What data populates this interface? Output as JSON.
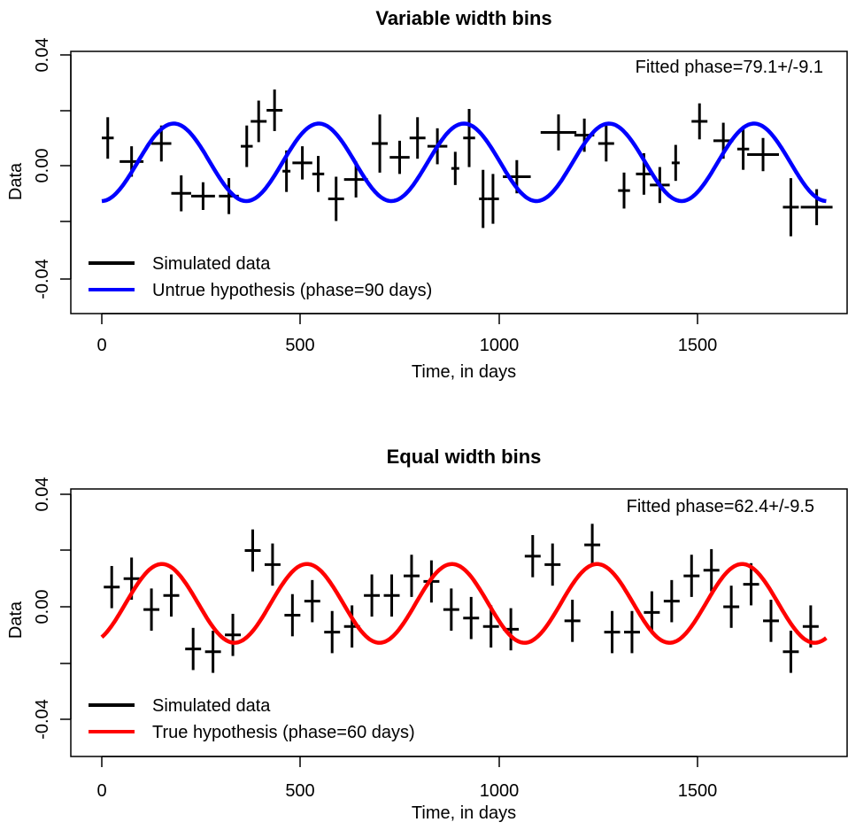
{
  "charts": [
    {
      "id": "top",
      "title": "Variable width bins",
      "xlabel": "Time, in days",
      "ylabel": "Data",
      "annotation": "Fitted phase=79.1+/-9.1",
      "x_ticks": [
        "0",
        "500",
        "1000",
        "1500"
      ],
      "y_ticks": [
        "-0.04",
        "0.00",
        "0.04"
      ],
      "legend": [
        {
          "label": "Simulated data",
          "color": "#000000"
        },
        {
          "label": "Untrue hypothesis (phase=90 days)",
          "color": "#0000ff"
        }
      ]
    },
    {
      "id": "bottom",
      "title": "Equal width bins",
      "xlabel": "Time, in days",
      "ylabel": "Data",
      "annotation": "Fitted phase=62.4+/-9.5",
      "x_ticks": [
        "0",
        "500",
        "1000",
        "1500"
      ],
      "y_ticks": [
        "-0.04",
        "0.00",
        "0.04"
      ],
      "legend": [
        {
          "label": "Simulated data",
          "color": "#000000"
        },
        {
          "label": "True hypothesis (phase=60 days)",
          "color": "#ff0000"
        }
      ]
    }
  ],
  "chart_data": [
    {
      "type": "scatter",
      "title": "Variable width bins",
      "xlabel": "Time, in days",
      "ylabel": "Data",
      "xlim": [
        -80,
        1880
      ],
      "ylim": [
        -0.053,
        0.043
      ],
      "x_ticks": [
        0,
        500,
        1000,
        1500
      ],
      "y_ticks": [
        -0.04,
        0.0,
        0.04
      ],
      "grid": false,
      "legend_position": "bottom-left",
      "annotation": "Fitted phase=79.1+/-9.1",
      "series": [
        {
          "name": "Simulated data",
          "kind": "errorbars",
          "color": "#000000",
          "points": [
            {
              "x": 15,
              "xerr": 15,
              "y": 0.01,
              "yerr": 0.0075
            },
            {
              "x": 75,
              "xerr": 30,
              "y": 0.0015,
              "yerr": 0.0055
            },
            {
              "x": 150,
              "xerr": 25,
              "y": 0.008,
              "yerr": 0.0065
            },
            {
              "x": 200,
              "xerr": 25,
              "y": -0.01,
              "yerr": 0.0065
            },
            {
              "x": 255,
              "xerr": 30,
              "y": -0.011,
              "yerr": 0.005
            },
            {
              "x": 320,
              "xerr": 25,
              "y": -0.011,
              "yerr": 0.0065
            },
            {
              "x": 365,
              "xerr": 15,
              "y": 0.007,
              "yerr": 0.0075
            },
            {
              "x": 395,
              "xerr": 20,
              "y": 0.016,
              "yerr": 0.0075
            },
            {
              "x": 435,
              "xerr": 20,
              "y": 0.02,
              "yerr": 0.0075
            },
            {
              "x": 465,
              "xerr": 10,
              "y": -0.002,
              "yerr": 0.0075
            },
            {
              "x": 505,
              "xerr": 25,
              "y": 0.001,
              "yerr": 0.006
            },
            {
              "x": 545,
              "xerr": 15,
              "y": -0.003,
              "yerr": 0.0065
            },
            {
              "x": 590,
              "xerr": 20,
              "y": -0.012,
              "yerr": 0.008
            },
            {
              "x": 640,
              "xerr": 30,
              "y": -0.005,
              "yerr": 0.0065
            },
            {
              "x": 700,
              "xerr": 20,
              "y": 0.008,
              "yerr": 0.0105
            },
            {
              "x": 750,
              "xerr": 25,
              "y": 0.003,
              "yerr": 0.006
            },
            {
              "x": 795,
              "xerr": 20,
              "y": 0.01,
              "yerr": 0.0075
            },
            {
              "x": 845,
              "xerr": 25,
              "y": 0.007,
              "yerr": 0.0065
            },
            {
              "x": 890,
              "xerr": 10,
              "y": -0.001,
              "yerr": 0.006
            },
            {
              "x": 925,
              "xerr": 15,
              "y": 0.01,
              "yerr": 0.0105
            },
            {
              "x": 960,
              "xerr": 10,
              "y": -0.012,
              "yerr": 0.0105
            },
            {
              "x": 985,
              "xerr": 15,
              "y": -0.012,
              "yerr": 0.009
            },
            {
              "x": 1045,
              "xerr": 35,
              "y": -0.004,
              "yerr": 0.006
            },
            {
              "x": 1150,
              "xerr": 45,
              "y": 0.012,
              "yerr": 0.0065
            },
            {
              "x": 1215,
              "xerr": 25,
              "y": 0.011,
              "yerr": 0.006
            },
            {
              "x": 1270,
              "xerr": 20,
              "y": 0.008,
              "yerr": 0.0065
            },
            {
              "x": 1315,
              "xerr": 15,
              "y": -0.009,
              "yerr": 0.0065
            },
            {
              "x": 1365,
              "xerr": 20,
              "y": -0.003,
              "yerr": 0.0075
            },
            {
              "x": 1405,
              "xerr": 25,
              "y": -0.007,
              "yerr": 0.0065
            },
            {
              "x": 1445,
              "xerr": 10,
              "y": 0.001,
              "yerr": 0.0065
            },
            {
              "x": 1505,
              "xerr": 20,
              "y": 0.016,
              "yerr": 0.0065
            },
            {
              "x": 1565,
              "xerr": 25,
              "y": 0.009,
              "yerr": 0.0065
            },
            {
              "x": 1615,
              "xerr": 15,
              "y": 0.006,
              "yerr": 0.0075
            },
            {
              "x": 1665,
              "xerr": 40,
              "y": 0.004,
              "yerr": 0.006
            },
            {
              "x": 1735,
              "xerr": 20,
              "y": -0.015,
              "yerr": 0.0105
            },
            {
              "x": 1800,
              "xerr": 40,
              "y": -0.015,
              "yerr": 0.0065
            }
          ]
        },
        {
          "name": "Untrue hypothesis (phase=90 days)",
          "kind": "curve",
          "color": "#0000ff",
          "function": "0.014*sin(2*pi*(x-phase)/365.25)+0.0012",
          "amplitude": 0.014,
          "offset": 0.0012,
          "period": 365.25,
          "phase": 90,
          "x_range": [
            0,
            1826
          ]
        }
      ]
    },
    {
      "type": "scatter",
      "title": "Equal width bins",
      "xlabel": "Time, in days",
      "ylabel": "Data",
      "xlim": [
        -80,
        1880
      ],
      "ylim": [
        -0.053,
        0.043
      ],
      "x_ticks": [
        0,
        500,
        1000,
        1500
      ],
      "y_ticks": [
        -0.04,
        0.0,
        0.04
      ],
      "grid": false,
      "legend_position": "bottom-left",
      "annotation": "Fitted phase=62.4+/-9.5",
      "series": [
        {
          "name": "Simulated data",
          "kind": "errorbars",
          "color": "#000000",
          "points": [
            {
              "x": 25,
              "xerr": 20,
              "y": 0.007,
              "yerr": 0.0075
            },
            {
              "x": 75,
              "xerr": 20,
              "y": 0.01,
              "yerr": 0.0075
            },
            {
              "x": 125,
              "xerr": 20,
              "y": -0.001,
              "yerr": 0.0075
            },
            {
              "x": 175,
              "xerr": 20,
              "y": 0.004,
              "yerr": 0.0075
            },
            {
              "x": 230,
              "xerr": 20,
              "y": -0.015,
              "yerr": 0.0075
            },
            {
              "x": 280,
              "xerr": 20,
              "y": -0.016,
              "yerr": 0.0075
            },
            {
              "x": 330,
              "xerr": 20,
              "y": -0.01,
              "yerr": 0.0075
            },
            {
              "x": 380,
              "xerr": 20,
              "y": 0.02,
              "yerr": 0.0075
            },
            {
              "x": 430,
              "xerr": 20,
              "y": 0.015,
              "yerr": 0.0075
            },
            {
              "x": 480,
              "xerr": 20,
              "y": -0.003,
              "yerr": 0.0075
            },
            {
              "x": 530,
              "xerr": 20,
              "y": 0.002,
              "yerr": 0.0075
            },
            {
              "x": 580,
              "xerr": 20,
              "y": -0.009,
              "yerr": 0.0075
            },
            {
              "x": 630,
              "xerr": 20,
              "y": -0.007,
              "yerr": 0.0075
            },
            {
              "x": 680,
              "xerr": 20,
              "y": 0.004,
              "yerr": 0.0075
            },
            {
              "x": 730,
              "xerr": 20,
              "y": 0.004,
              "yerr": 0.0075
            },
            {
              "x": 780,
              "xerr": 20,
              "y": 0.011,
              "yerr": 0.0075
            },
            {
              "x": 830,
              "xerr": 20,
              "y": 0.009,
              "yerr": 0.0075
            },
            {
              "x": 880,
              "xerr": 20,
              "y": -0.001,
              "yerr": 0.0075
            },
            {
              "x": 930,
              "xerr": 20,
              "y": -0.004,
              "yerr": 0.0075
            },
            {
              "x": 980,
              "xerr": 20,
              "y": -0.007,
              "yerr": 0.0075
            },
            {
              "x": 1030,
              "xerr": 20,
              "y": -0.008,
              "yerr": 0.0075
            },
            {
              "x": 1085,
              "xerr": 20,
              "y": 0.018,
              "yerr": 0.0075
            },
            {
              "x": 1135,
              "xerr": 20,
              "y": 0.015,
              "yerr": 0.0075
            },
            {
              "x": 1185,
              "xerr": 20,
              "y": -0.005,
              "yerr": 0.0075
            },
            {
              "x": 1235,
              "xerr": 20,
              "y": 0.022,
              "yerr": 0.0075
            },
            {
              "x": 1285,
              "xerr": 20,
              "y": -0.009,
              "yerr": 0.0075
            },
            {
              "x": 1335,
              "xerr": 20,
              "y": -0.009,
              "yerr": 0.0075
            },
            {
              "x": 1385,
              "xerr": 20,
              "y": -0.002,
              "yerr": 0.0075
            },
            {
              "x": 1435,
              "xerr": 20,
              "y": 0.002,
              "yerr": 0.0075
            },
            {
              "x": 1485,
              "xerr": 20,
              "y": 0.011,
              "yerr": 0.0075
            },
            {
              "x": 1535,
              "xerr": 20,
              "y": 0.013,
              "yerr": 0.0075
            },
            {
              "x": 1585,
              "xerr": 20,
              "y": 0.0,
              "yerr": 0.0075
            },
            {
              "x": 1635,
              "xerr": 20,
              "y": 0.008,
              "yerr": 0.0075
            },
            {
              "x": 1685,
              "xerr": 20,
              "y": -0.005,
              "yerr": 0.0075
            },
            {
              "x": 1735,
              "xerr": 20,
              "y": -0.016,
              "yerr": 0.0075
            },
            {
              "x": 1785,
              "xerr": 20,
              "y": -0.007,
              "yerr": 0.0075
            }
          ]
        },
        {
          "name": "True hypothesis (phase=60 days)",
          "kind": "curve",
          "color": "#ff0000",
          "function": "0.014*sin(2*pi*(x-phase)/365.25)+0.0012",
          "amplitude": 0.014,
          "offset": 0.0012,
          "period": 365.25,
          "phase": 60,
          "x_range": [
            0,
            1826
          ]
        }
      ]
    }
  ]
}
